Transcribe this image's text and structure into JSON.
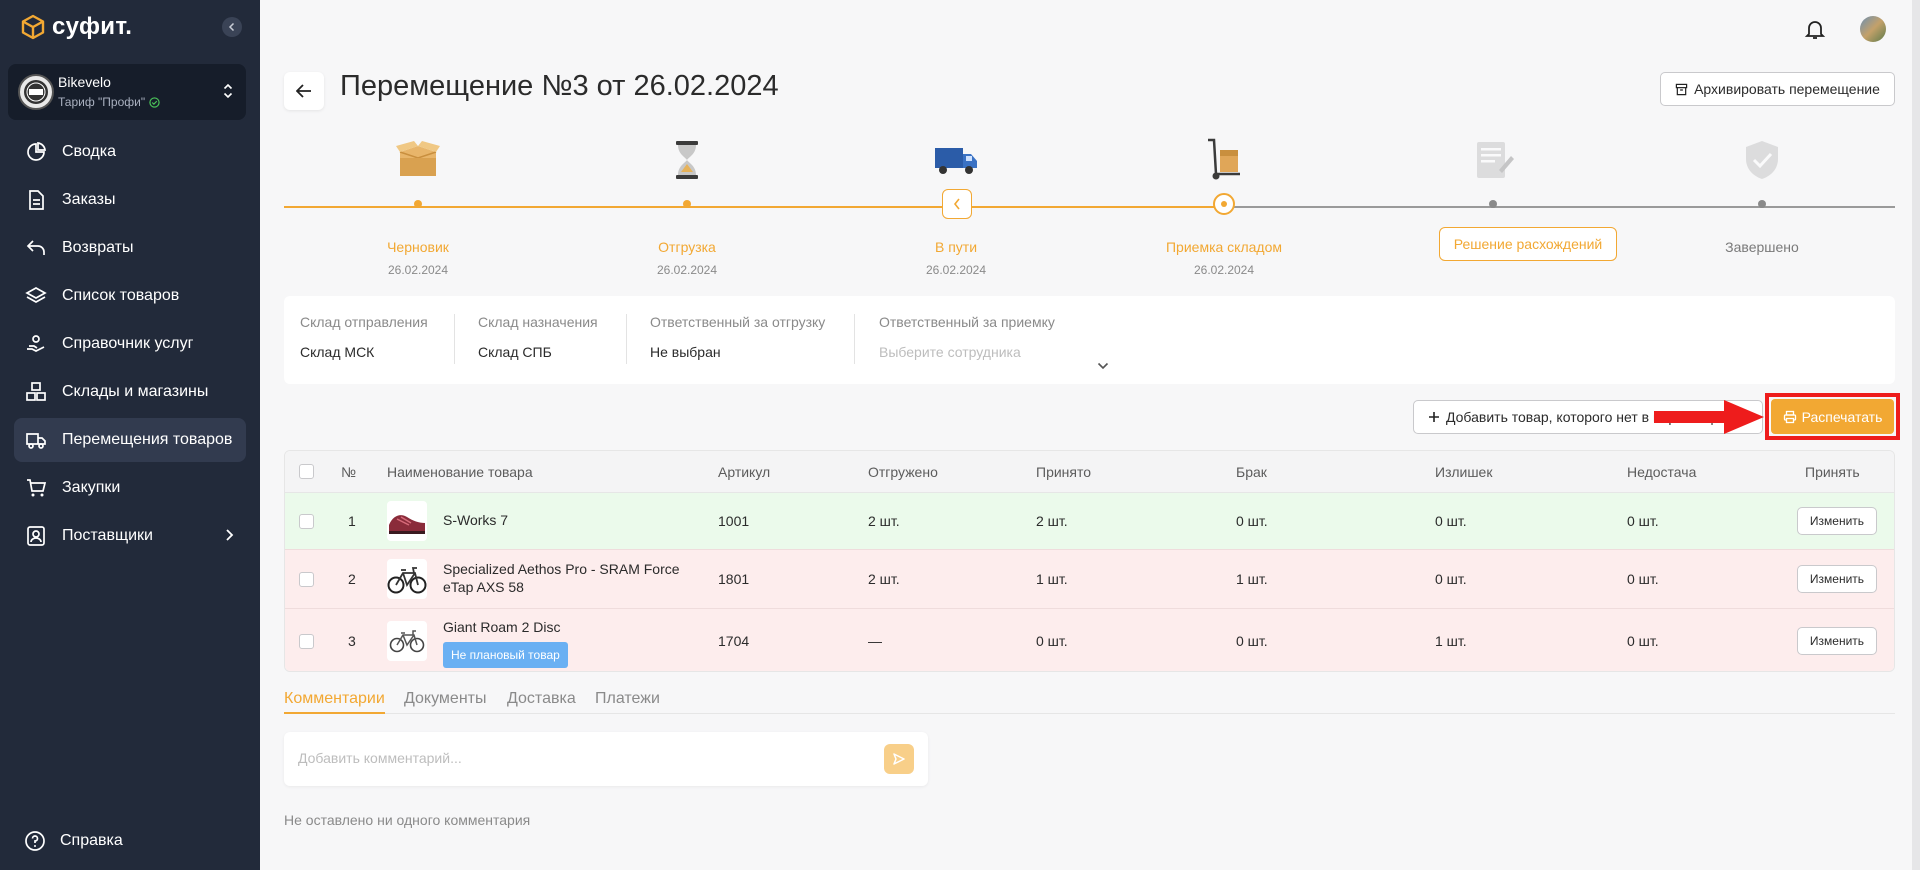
{
  "app": {
    "logo_text": "суфит."
  },
  "account": {
    "name": "Bikevelo",
    "plan": "Тариф \"Профи\""
  },
  "sidebar": {
    "items": [
      {
        "label": "Сводка",
        "icon": "pie-chart-icon"
      },
      {
        "label": "Заказы",
        "icon": "document-icon"
      },
      {
        "label": "Возвраты",
        "icon": "return-icon"
      },
      {
        "label": "Список товаров",
        "icon": "layers-icon"
      },
      {
        "label": "Справочник услуг",
        "icon": "service-hand-icon"
      },
      {
        "label": "Склады и магазины",
        "icon": "boxes-icon"
      },
      {
        "label": "Перемещения товаров",
        "icon": "truck-icon",
        "active": true
      },
      {
        "label": "Закупки",
        "icon": "cart-icon"
      },
      {
        "label": "Поставщики",
        "icon": "supplier-icon",
        "has_children": true
      }
    ],
    "help": "Справка"
  },
  "header": {
    "title": "Перемещение №3 от 26.02.2024",
    "archive_label": "Архивировать перемещение"
  },
  "steps": [
    {
      "label": "Черновик",
      "date": "26.02.2024",
      "state": "done",
      "icon": "open-box-icon"
    },
    {
      "label": "Отгрузка",
      "date": "26.02.2024",
      "state": "done",
      "icon": "hourglass-icon"
    },
    {
      "label": "В пути",
      "date": "26.02.2024",
      "state": "done",
      "icon": "delivery-truck-icon"
    },
    {
      "label": "Приемка складом",
      "date": "26.02.2024",
      "state": "current",
      "icon": "hand-cart-icon"
    },
    {
      "label": "Решение расхождений",
      "date": "",
      "state": "pending",
      "icon": "clipboard-icon"
    },
    {
      "label": "Завершено",
      "date": "",
      "state": "pending",
      "icon": "shield-check-icon"
    }
  ],
  "info": {
    "from_label": "Склад отправления",
    "from_value": "Склад МСК",
    "to_label": "Склад назначения",
    "to_value": "Склад СПБ",
    "shipper_label": "Ответственный за отгрузку",
    "shipper_value": "Не выбран",
    "receiver_label": "Ответственный за приемку",
    "receiver_placeholder": "Выберите сотрудника"
  },
  "actions": {
    "add_label": "Добавить товар, которого нет в перемещении",
    "print_label": "Распечатать"
  },
  "table": {
    "headers": [
      "№",
      "Наименование товара",
      "Артикул",
      "Отгружено",
      "Принято",
      "Брак",
      "Излишек",
      "Недостача",
      "Принять"
    ],
    "rows": [
      {
        "num": "1",
        "name": "S-Works 7",
        "sku": "1001",
        "shipped": "2 шт.",
        "accepted": "2 шт.",
        "defect": "0 шт.",
        "surplus": "0 шт.",
        "shortage": "0 шт.",
        "action": "Изменить",
        "badge": ""
      },
      {
        "num": "2",
        "name": "Specialized Aethos Pro - SRAM Force eTap AXS 58",
        "sku": "1801",
        "shipped": "2 шт.",
        "accepted": "1 шт.",
        "defect": "1 шт.",
        "surplus": "0 шт.",
        "shortage": "0 шт.",
        "action": "Изменить",
        "badge": ""
      },
      {
        "num": "3",
        "name": "Giant Roam 2 Disc",
        "sku": "1704",
        "shipped": "—",
        "accepted": "0 шт.",
        "defect": "0 шт.",
        "surplus": "1 шт.",
        "shortage": "0 шт.",
        "action": "Изменить",
        "badge": "Не плановый товар"
      }
    ]
  },
  "tabs": [
    "Комментарии",
    "Документы",
    "Доставка",
    "Платежи"
  ],
  "comments": {
    "placeholder": "Добавить комментарий...",
    "empty_text": "Не оставлено ни одного комментария"
  },
  "colors": {
    "accent": "#f2a833",
    "sidebar_bg": "#222a3a",
    "highlight": "#ee1c1c"
  }
}
